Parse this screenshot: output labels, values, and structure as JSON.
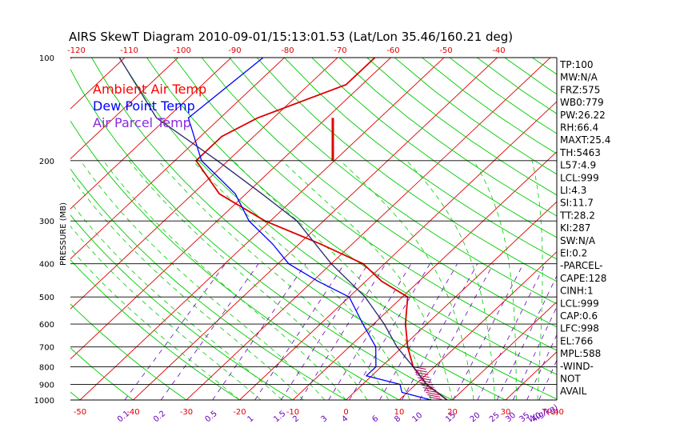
{
  "chart_data": {
    "type": "line",
    "title": "AIRS SkewT Diagram 2010-09-01/15:13:01.53 (Lat/Lon 35.46/160.21 deg)",
    "ylabel": "PRESSURE (MB)",
    "xlabel_bottom": "T(C)",
    "mixing_label": "W(g/kg)",
    "pressure_ticks": [
      100,
      200,
      300,
      400,
      500,
      600,
      700,
      800,
      900,
      1000
    ],
    "top_temp_ticks": [
      -120,
      -110,
      -100,
      -90,
      -80,
      -70,
      -60,
      -50,
      -40
    ],
    "bottom_temp_ticks": [
      -50,
      -40,
      -30,
      -20,
      -10,
      0,
      10,
      20,
      30,
      40
    ],
    "mixing_ratio_ticks": [
      "0.1",
      "0.2",
      "0.5",
      "1",
      "1.5",
      "2",
      "3",
      "4",
      "6",
      "8",
      "10",
      "15",
      "20",
      "25",
      "30",
      "35",
      "40"
    ],
    "legend": [
      {
        "name": "Ambient Air Temp",
        "color": "#ff0000"
      },
      {
        "name": "Dew Point Temp",
        "color": "#0000ff"
      },
      {
        "name": "Air Parcel Temp",
        "color": "#8a2be2"
      }
    ],
    "series": [
      {
        "name": "Ambient Air Temp",
        "color": "#dd0000",
        "points": [
          [
            100,
            -63
          ],
          [
            120,
            -63
          ],
          [
            150,
            -73
          ],
          [
            170,
            -76
          ],
          [
            200,
            -76
          ],
          [
            250,
            -65
          ],
          [
            300,
            -51
          ],
          [
            350,
            -36
          ],
          [
            400,
            -24
          ],
          [
            450,
            -17
          ],
          [
            500,
            -9
          ],
          [
            600,
            -4
          ],
          [
            700,
            1
          ],
          [
            800,
            6
          ],
          [
            900,
            12
          ],
          [
            1000,
            19
          ]
        ]
      },
      {
        "name": "Dew Point Temp",
        "color": "#0000ff",
        "points": [
          [
            100,
            -84
          ],
          [
            150,
            -86
          ],
          [
            200,
            -75
          ],
          [
            250,
            -62
          ],
          [
            300,
            -54
          ],
          [
            350,
            -45
          ],
          [
            400,
            -38
          ],
          [
            450,
            -29
          ],
          [
            500,
            -20
          ],
          [
            600,
            -12
          ],
          [
            700,
            -5
          ],
          [
            800,
            -1
          ],
          [
            850,
            -1
          ],
          [
            900,
            7
          ],
          [
            950,
            9
          ],
          [
            1000,
            16
          ]
        ]
      },
      {
        "name": "Air Parcel Temp",
        "color": "#2a2a6a",
        "points": [
          [
            1000,
            19
          ],
          [
            900,
            12
          ],
          [
            800,
            6
          ],
          [
            700,
            -1
          ],
          [
            600,
            -8
          ],
          [
            500,
            -17
          ],
          [
            400,
            -30
          ],
          [
            300,
            -45
          ],
          [
            250,
            -57
          ],
          [
            200,
            -72
          ],
          [
            150,
            -92
          ],
          [
            100,
            -111
          ]
        ]
      }
    ],
    "stats": [
      "TP:100",
      "MW:N/A",
      "FRZ:575",
      "WB0:779",
      "PW:26.22",
      "RH:66.4",
      "MAXT:25.4",
      "TH:5463",
      "L57:4.9",
      "LCL:999",
      "LI:4.3",
      "SI:11.7",
      "TT:28.2",
      "KI:287",
      "SW:N/A",
      "EI:0.2",
      "-PARCEL-",
      "CAPE:128",
      "CINH:1",
      "LCL:999",
      "CAP:0.6",
      "LFC:998",
      "EL:766",
      "MPL:588",
      "-WIND-",
      "NOT",
      "AVAIL"
    ]
  }
}
